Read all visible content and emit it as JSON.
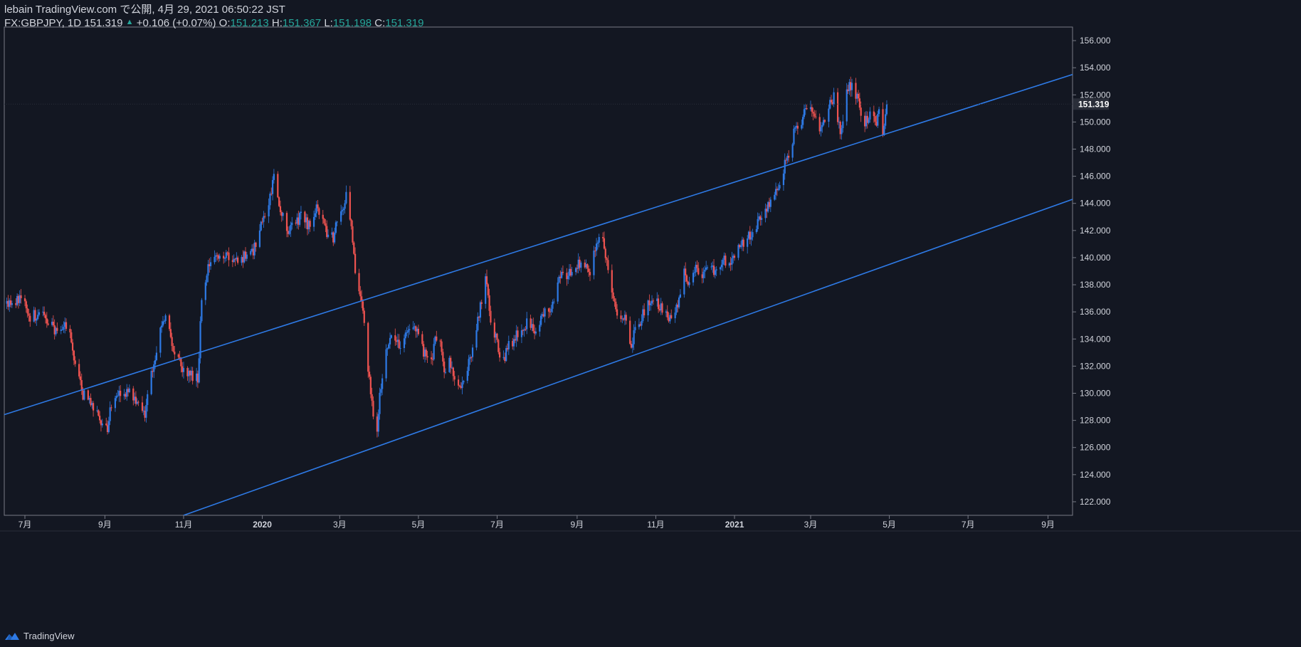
{
  "header": {
    "publisher_line": "lebain TradingView.com で公開, 4月 29, 2021 06:50:22 JST",
    "symbol_line": "FX:GBPJPY, 1D 151.319",
    "change_arrow": "▲",
    "change_text": "+0.106 (+0.07%)",
    "o_label": "O:",
    "o_value": "151.213",
    "h_label": "H:",
    "h_value": "151.367",
    "l_label": "L:",
    "l_value": "151.198",
    "c_label": "C:",
    "c_value": "151.319"
  },
  "footer": {
    "brand": "TradingView"
  },
  "colors": {
    "background": "#131722",
    "up": "#2e7ae6",
    "down": "#ef5350",
    "channel": "#2e7ae6",
    "text": "#d1d4dc",
    "ohlc_value": "#26a69a",
    "axis_border": "#787b86"
  },
  "chart_data": {
    "type": "candlestick",
    "title": "FX:GBPJPY, 1D",
    "last_price": 151.319,
    "ylim": [
      121,
      157
    ],
    "yticks": [
      "122.000",
      "124.000",
      "126.000",
      "128.000",
      "130.000",
      "132.000",
      "134.000",
      "136.000",
      "138.000",
      "140.000",
      "142.000",
      "144.000",
      "146.000",
      "148.000",
      "150.000",
      "152.000",
      "154.000",
      "156.000"
    ],
    "time_range": [
      "2019-06-15",
      "2021-09-20"
    ],
    "xticks": [
      {
        "label": "7月",
        "date": "2019-07-01"
      },
      {
        "label": "9月",
        "date": "2019-09-01"
      },
      {
        "label": "11月",
        "date": "2019-11-01"
      },
      {
        "label": "2020",
        "date": "2020-01-01"
      },
      {
        "label": "3月",
        "date": "2020-03-01"
      },
      {
        "label": "5月",
        "date": "2020-05-01"
      },
      {
        "label": "7月",
        "date": "2020-07-01"
      },
      {
        "label": "9月",
        "date": "2020-09-01"
      },
      {
        "label": "11月",
        "date": "2020-11-01"
      },
      {
        "label": "2021",
        "date": "2021-01-01"
      },
      {
        "label": "3月",
        "date": "2021-03-01"
      },
      {
        "label": "5月",
        "date": "2021-05-01"
      },
      {
        "label": "7月",
        "date": "2021-07-01"
      },
      {
        "label": "9月",
        "date": "2021-09-01"
      }
    ],
    "close_path": [
      [
        "2019-06-17",
        136.5
      ],
      [
        "2019-06-28",
        137.2
      ],
      [
        "2019-07-05",
        135.6
      ],
      [
        "2019-07-12",
        135.9
      ],
      [
        "2019-07-19",
        135.2
      ],
      [
        "2019-07-26",
        134.6
      ],
      [
        "2019-08-01",
        134.8
      ],
      [
        "2019-08-05",
        134.3
      ],
      [
        "2019-08-10",
        131.8
      ],
      [
        "2019-08-15",
        129.9
      ],
      [
        "2019-08-22",
        129.3
      ],
      [
        "2019-08-28",
        128.0
      ],
      [
        "2019-09-03",
        127.5
      ],
      [
        "2019-09-06",
        129.3
      ],
      [
        "2019-09-13",
        129.9
      ],
      [
        "2019-09-20",
        130.0
      ],
      [
        "2019-09-27",
        129.0
      ],
      [
        "2019-10-02",
        128.2
      ],
      [
        "2019-10-07",
        131.6
      ],
      [
        "2019-10-14",
        134.5
      ],
      [
        "2019-10-18",
        135.4
      ],
      [
        "2019-10-24",
        133.3
      ],
      [
        "2019-10-30",
        132.1
      ],
      [
        "2019-11-05",
        131.5
      ],
      [
        "2019-11-12",
        131.0
      ],
      [
        "2019-11-15",
        137.0
      ],
      [
        "2019-11-22",
        140.0
      ],
      [
        "2019-11-29",
        139.8
      ],
      [
        "2019-12-06",
        140.0
      ],
      [
        "2019-12-12",
        139.6
      ],
      [
        "2019-12-18",
        140.2
      ],
      [
        "2019-12-24",
        140.3
      ],
      [
        "2019-12-31",
        142.2
      ],
      [
        "2020-01-06",
        143.8
      ],
      [
        "2020-01-10",
        146.1
      ],
      [
        "2020-01-14",
        144.0
      ],
      [
        "2020-01-20",
        142.0
      ],
      [
        "2020-01-26",
        142.7
      ],
      [
        "2020-02-01",
        143.0
      ],
      [
        "2020-02-07",
        142.2
      ],
      [
        "2020-02-13",
        143.8
      ],
      [
        "2020-02-19",
        142.0
      ],
      [
        "2020-02-25",
        141.5
      ],
      [
        "2020-03-02",
        143.5
      ],
      [
        "2020-03-06",
        144.4
      ],
      [
        "2020-03-10",
        142.2
      ],
      [
        "2020-03-14",
        138.3
      ],
      [
        "2020-03-19",
        136.1
      ],
      [
        "2020-03-24",
        131.0
      ],
      [
        "2020-03-29",
        126.0
      ],
      [
        "2020-04-01",
        130.0
      ],
      [
        "2020-04-06",
        133.0
      ],
      [
        "2020-04-12",
        134.5
      ],
      [
        "2020-04-18",
        133.4
      ],
      [
        "2020-04-24",
        134.8
      ],
      [
        "2020-04-30",
        134.8
      ],
      [
        "2020-05-05",
        133.0
      ],
      [
        "2020-05-11",
        132.2
      ],
      [
        "2020-05-16",
        134.8
      ],
      [
        "2020-05-21",
        131.7
      ],
      [
        "2020-05-26",
        132.3
      ],
      [
        "2020-05-31",
        130.0
      ],
      [
        "2020-06-06",
        131.6
      ],
      [
        "2020-06-12",
        133.0
      ],
      [
        "2020-06-18",
        136.5
      ],
      [
        "2020-06-22",
        138.5
      ],
      [
        "2020-06-26",
        135.5
      ],
      [
        "2020-06-30",
        134.0
      ],
      [
        "2020-07-05",
        132.0
      ],
      [
        "2020-07-10",
        133.5
      ],
      [
        "2020-07-15",
        134.0
      ],
      [
        "2020-07-20",
        135.0
      ],
      [
        "2020-07-26",
        135.2
      ],
      [
        "2020-08-01",
        134.5
      ],
      [
        "2020-08-06",
        136.0
      ],
      [
        "2020-08-12",
        136.5
      ],
      [
        "2020-08-18",
        138.5
      ],
      [
        "2020-08-24",
        138.5
      ],
      [
        "2020-08-30",
        139.5
      ],
      [
        "2020-09-05",
        139.5
      ],
      [
        "2020-09-11",
        139.0
      ],
      [
        "2020-09-16",
        141.0
      ],
      [
        "2020-09-21",
        141.6
      ],
      [
        "2020-09-27",
        138.0
      ],
      [
        "2020-10-02",
        136.0
      ],
      [
        "2020-10-08",
        135.4
      ],
      [
        "2020-10-12",
        133.5
      ],
      [
        "2020-10-16",
        134.6
      ],
      [
        "2020-10-22",
        135.8
      ],
      [
        "2020-10-28",
        137.0
      ],
      [
        "2020-11-03",
        136.5
      ],
      [
        "2020-11-08",
        136.0
      ],
      [
        "2020-11-14",
        135.2
      ],
      [
        "2020-11-18",
        136.4
      ],
      [
        "2020-11-22",
        139.0
      ],
      [
        "2020-11-27",
        138.0
      ],
      [
        "2020-12-02",
        139.5
      ],
      [
        "2020-12-07",
        138.7
      ],
      [
        "2020-12-12",
        139.5
      ],
      [
        "2020-12-17",
        139.0
      ],
      [
        "2020-12-22",
        139.8
      ],
      [
        "2020-12-27",
        139.7
      ],
      [
        "2021-01-01",
        140.0
      ],
      [
        "2021-01-06",
        141.0
      ],
      [
        "2021-01-11",
        141.5
      ],
      [
        "2021-01-16",
        141.8
      ],
      [
        "2021-01-22",
        143.0
      ],
      [
        "2021-01-27",
        144.0
      ],
      [
        "2021-02-02",
        144.7
      ],
      [
        "2021-02-08",
        146.5
      ],
      [
        "2021-02-13",
        147.8
      ],
      [
        "2021-02-17",
        149.5
      ],
      [
        "2021-02-22",
        150.0
      ],
      [
        "2021-02-27",
        151.5
      ],
      [
        "2021-03-04",
        150.5
      ],
      [
        "2021-03-09",
        149.5
      ],
      [
        "2021-03-14",
        151.0
      ],
      [
        "2021-03-19",
        151.8
      ],
      [
        "2021-03-24",
        149.3
      ],
      [
        "2021-03-29",
        152.0
      ],
      [
        "2021-04-02",
        153.0
      ],
      [
        "2021-04-07",
        151.5
      ],
      [
        "2021-04-12",
        149.8
      ],
      [
        "2021-04-16",
        150.8
      ],
      [
        "2021-04-20",
        149.8
      ],
      [
        "2021-04-23",
        150.8
      ],
      [
        "2021-04-26",
        149.4
      ],
      [
        "2021-04-29",
        151.3
      ]
    ],
    "annotations": [
      {
        "type": "trendline",
        "name": "channel-upper",
        "from": [
          "2019-06-01",
          128.0
        ],
        "to": [
          "2021-09-20",
          153.5
        ]
      },
      {
        "type": "trendline",
        "name": "channel-lower",
        "from": [
          "2019-11-01",
          121.0
        ],
        "to": [
          "2021-09-20",
          144.3
        ]
      }
    ]
  }
}
